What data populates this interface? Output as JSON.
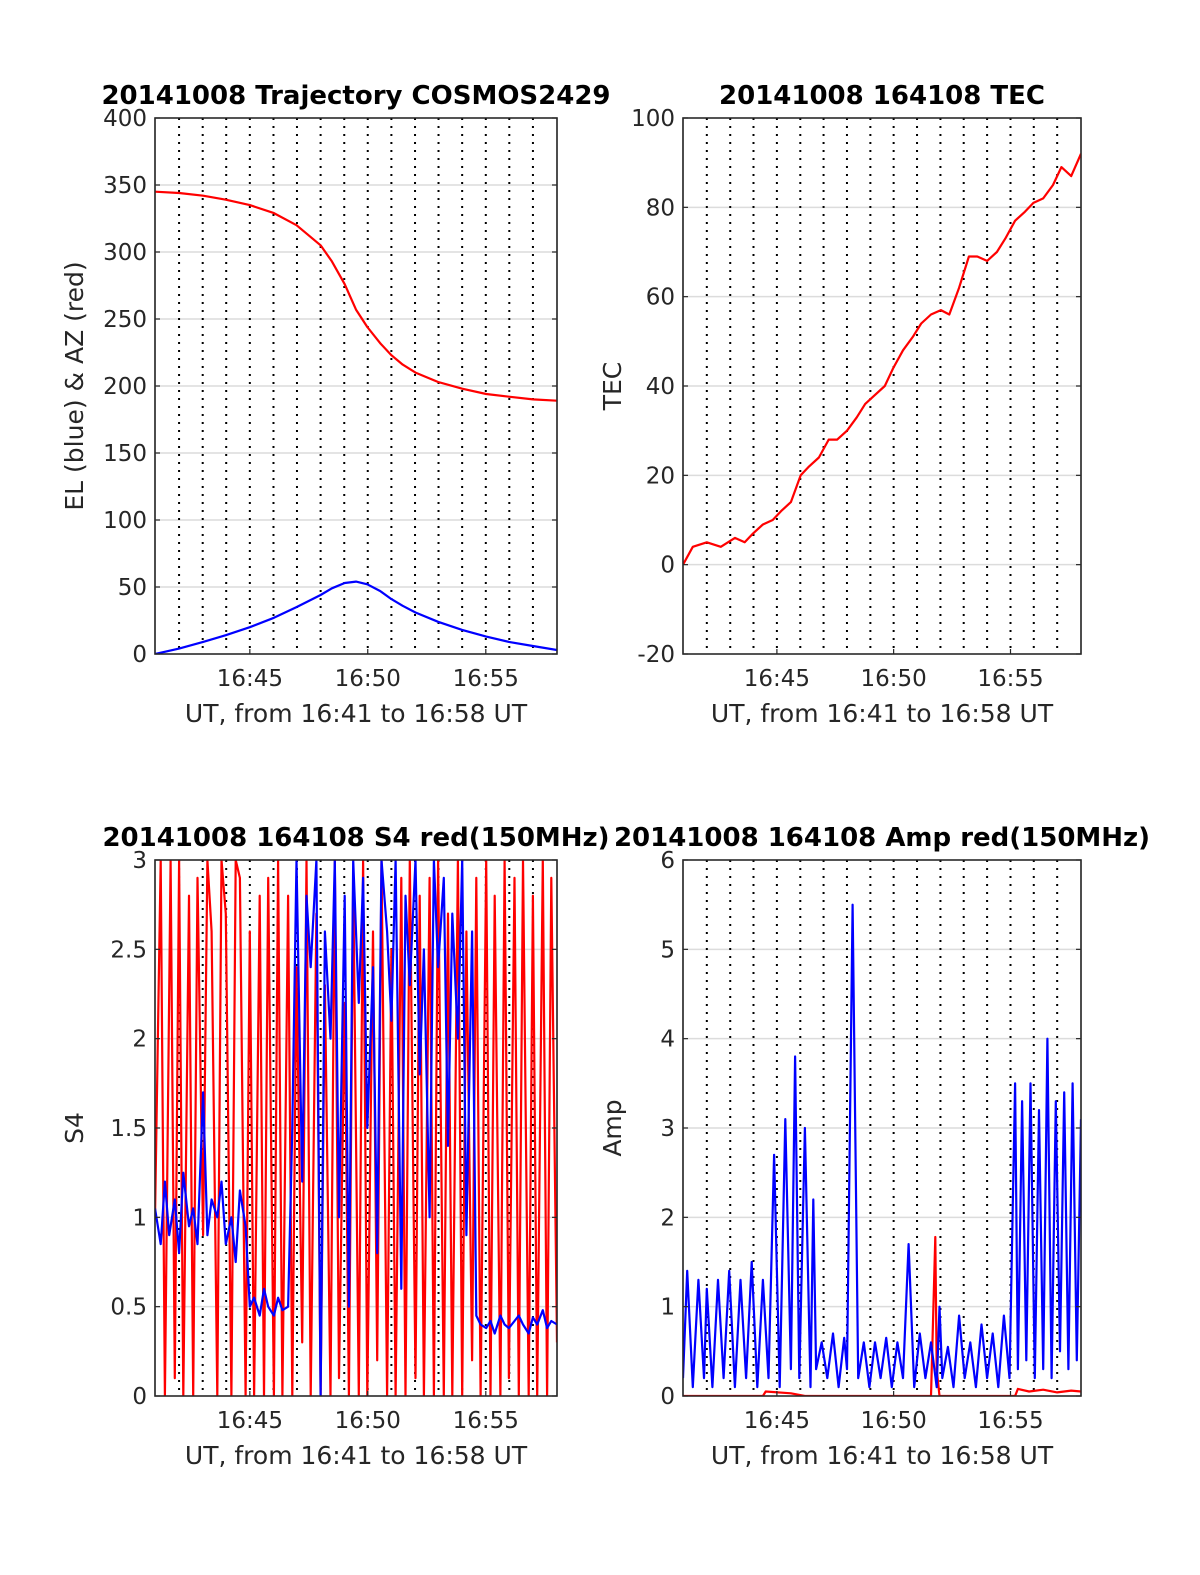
{
  "chart_data": [
    {
      "id": "trajectory",
      "type": "line",
      "title": "20141008 Trajectory COSMOS2429",
      "xlabel": "UT, from 16:41 to 16:58 UT",
      "ylabel": "EL (blue) & AZ (red)",
      "xlim": [
        16.683,
        16.967
      ],
      "ylim": [
        0,
        400
      ],
      "yticks": [
        0,
        50,
        100,
        150,
        200,
        250,
        300,
        350,
        400
      ],
      "xticks": [
        {
          "v": 16.75,
          "label": "16:45"
        },
        {
          "v": 16.8333,
          "label": "16:50"
        },
        {
          "v": 16.9167,
          "label": "16:55"
        }
      ],
      "vgrid_minutes": [
        16.7,
        16.7167,
        16.7333,
        16.75,
        16.7667,
        16.7833,
        16.8,
        16.8167,
        16.8333,
        16.85,
        16.8667,
        16.8833,
        16.9,
        16.9167,
        16.9333,
        16.95
      ],
      "series": [
        {
          "name": "AZ",
          "color": "#ff0000",
          "x": [
            16.683,
            16.7,
            16.717,
            16.733,
            16.75,
            16.767,
            16.783,
            16.8,
            16.808,
            16.817,
            16.825,
            16.833,
            16.842,
            16.85,
            16.858,
            16.867,
            16.883,
            16.9,
            16.917,
            16.933,
            16.95,
            16.967
          ],
          "y": [
            345,
            344,
            342,
            339,
            335,
            329,
            320,
            305,
            293,
            276,
            257,
            244,
            232,
            223,
            216,
            210,
            203,
            198,
            194,
            192,
            190,
            189
          ]
        },
        {
          "name": "EL",
          "color": "#0000ff",
          "x": [
            16.683,
            16.7,
            16.717,
            16.733,
            16.75,
            16.767,
            16.783,
            16.8,
            16.808,
            16.817,
            16.825,
            16.833,
            16.842,
            16.85,
            16.858,
            16.867,
            16.883,
            16.9,
            16.917,
            16.933,
            16.95,
            16.967
          ],
          "y": [
            0,
            4,
            9,
            14,
            20,
            27,
            35,
            44,
            49,
            53,
            54,
            52,
            47,
            41,
            36,
            31,
            24,
            18,
            13,
            9,
            6,
            3
          ]
        }
      ]
    },
    {
      "id": "tec",
      "type": "line",
      "title": "20141008 164108 TEC",
      "xlabel": "UT, from 16:41 to 16:58 UT",
      "ylabel": "TEC",
      "xlim": [
        16.683,
        16.967
      ],
      "ylim": [
        -20,
        100
      ],
      "yticks": [
        -20,
        0,
        20,
        40,
        60,
        80,
        100
      ],
      "xticks": [
        {
          "v": 16.75,
          "label": "16:45"
        },
        {
          "v": 16.8333,
          "label": "16:50"
        },
        {
          "v": 16.9167,
          "label": "16:55"
        }
      ],
      "vgrid_minutes": [
        16.7,
        16.7167,
        16.7333,
        16.75,
        16.7667,
        16.7833,
        16.8,
        16.8167,
        16.8333,
        16.85,
        16.8667,
        16.8833,
        16.9,
        16.9167,
        16.9333,
        16.95
      ],
      "series": [
        {
          "name": "TEC",
          "color": "#ff0000",
          "x": [
            16.683,
            16.69,
            16.7,
            16.71,
            16.72,
            16.727,
            16.733,
            16.74,
            16.747,
            16.753,
            16.76,
            16.767,
            16.773,
            16.78,
            16.787,
            16.793,
            16.8,
            16.807,
            16.813,
            16.82,
            16.827,
            16.833,
            16.84,
            16.847,
            16.853,
            16.86,
            16.867,
            16.873,
            16.88,
            16.887,
            16.893,
            16.9,
            16.907,
            16.913,
            16.92,
            16.927,
            16.933,
            16.94,
            16.947,
            16.953,
            16.96,
            16.967
          ],
          "y": [
            0,
            4,
            5,
            4,
            6,
            5,
            7,
            9,
            10,
            12,
            14,
            20,
            22,
            24,
            28,
            28,
            30,
            33,
            36,
            38,
            40,
            44,
            48,
            51,
            54,
            56,
            57,
            56,
            62,
            69,
            69,
            68,
            70,
            73,
            77,
            79,
            81,
            82,
            85,
            89,
            87,
            92
          ]
        }
      ]
    },
    {
      "id": "s4",
      "type": "line",
      "title": "20141008 164108 S4 red(150MHz)",
      "xlabel": "UT, from 16:41 to 16:58 UT",
      "ylabel": "S4",
      "xlim": [
        16.683,
        16.967
      ],
      "ylim": [
        0,
        3
      ],
      "yticks": [
        0,
        0.5,
        1,
        1.5,
        2,
        2.5,
        3
      ],
      "xticks": [
        {
          "v": 16.75,
          "label": "16:45"
        },
        {
          "v": 16.8333,
          "label": "16:50"
        },
        {
          "v": 16.9167,
          "label": "16:55"
        }
      ],
      "vgrid_minutes": [
        16.7,
        16.7167,
        16.7333,
        16.75,
        16.7667,
        16.7833,
        16.8,
        16.8167,
        16.8333,
        16.85,
        16.8667,
        16.8833,
        16.9,
        16.9167,
        16.9333,
        16.95
      ],
      "series": [
        {
          "name": "S4 red",
          "color": "#ff0000",
          "x": [
            16.683,
            16.687,
            16.69,
            16.694,
            16.697,
            16.7,
            16.703,
            16.707,
            16.71,
            16.713,
            16.717,
            16.72,
            16.723,
            16.727,
            16.73,
            16.733,
            16.737,
            16.74,
            16.743,
            16.747,
            16.75,
            16.753,
            16.757,
            16.76,
            16.763,
            16.767,
            16.77,
            16.773,
            16.777,
            16.78,
            16.783,
            16.787,
            16.79,
            16.793,
            16.797,
            16.8,
            16.803,
            16.807,
            16.81,
            16.813,
            16.817,
            16.82,
            16.823,
            16.827,
            16.83,
            16.833,
            16.837,
            16.84,
            16.843,
            16.847,
            16.85,
            16.853,
            16.857,
            16.86,
            16.863,
            16.867,
            16.87,
            16.873,
            16.877,
            16.88,
            16.883,
            16.887,
            16.89,
            16.893,
            16.897,
            16.9,
            16.903,
            16.907,
            16.91,
            16.913,
            16.917,
            16.92,
            16.923,
            16.927,
            16.93,
            16.933,
            16.937,
            16.94,
            16.943,
            16.947,
            16.95,
            16.953,
            16.957,
            16.96,
            16.963,
            16.967
          ],
          "y": [
            1.0,
            3.0,
            0.0,
            3.0,
            0.1,
            3.0,
            0.0,
            2.8,
            0.0,
            2.9,
            0.9,
            3.0,
            2.6,
            0.0,
            3.0,
            2.7,
            0.0,
            3.0,
            2.9,
            0.0,
            2.6,
            0.0,
            2.8,
            0.0,
            2.9,
            0.0,
            3.0,
            0.0,
            2.8,
            0.0,
            2.4,
            0.3,
            3.0,
            0.0,
            2.7,
            0.0,
            2.3,
            0.0,
            3.0,
            0.1,
            2.2,
            0.0,
            2.9,
            0.0,
            3.0,
            0.0,
            2.6,
            0.2,
            3.0,
            0.0,
            2.5,
            0.0,
            2.9,
            0.0,
            3.0,
            0.1,
            2.8,
            0.0,
            2.9,
            0.0,
            3.0,
            0.0,
            2.7,
            0.0,
            3.0,
            0.0,
            2.6,
            0.2,
            2.9,
            0.0,
            3.0,
            0.0,
            2.8,
            0.0,
            3.0,
            0.1,
            2.9,
            0.0,
            3.0,
            0.0,
            2.8,
            0.0,
            3.0,
            0.0,
            2.9,
            0.3
          ]
        },
        {
          "name": "S4 blue",
          "color": "#0000ff",
          "x": [
            16.683,
            16.687,
            16.69,
            16.693,
            16.697,
            16.7,
            16.703,
            16.707,
            16.71,
            16.713,
            16.717,
            16.72,
            16.723,
            16.727,
            16.73,
            16.733,
            16.737,
            16.74,
            16.743,
            16.747,
            16.75,
            16.753,
            16.757,
            16.76,
            16.763,
            16.767,
            16.77,
            16.773,
            16.777,
            16.78,
            16.783,
            16.787,
            16.79,
            16.793,
            16.797,
            16.8,
            16.803,
            16.807,
            16.81,
            16.813,
            16.817,
            16.82,
            16.823,
            16.827,
            16.83,
            16.833,
            16.837,
            16.84,
            16.843,
            16.847,
            16.85,
            16.853,
            16.857,
            16.86,
            16.863,
            16.867,
            16.87,
            16.873,
            16.877,
            16.88,
            16.883,
            16.887,
            16.89,
            16.893,
            16.897,
            16.9,
            16.903,
            16.907,
            16.91,
            16.913,
            16.917,
            16.92,
            16.923,
            16.927,
            16.93,
            16.933,
            16.937,
            16.94,
            16.943,
            16.947,
            16.95,
            16.953,
            16.957,
            16.96,
            16.963,
            16.967
          ],
          "y": [
            1.05,
            0.85,
            1.2,
            0.9,
            1.1,
            0.8,
            1.25,
            0.95,
            1.05,
            0.85,
            1.7,
            0.9,
            1.1,
            1.0,
            1.2,
            0.85,
            1.0,
            0.75,
            1.15,
            0.95,
            0.5,
            0.55,
            0.45,
            0.6,
            0.5,
            0.45,
            0.55,
            0.48,
            0.5,
            1.5,
            3.0,
            1.2,
            2.8,
            2.4,
            3.0,
            0.0,
            2.6,
            2.0,
            3.0,
            1.0,
            2.8,
            0.5,
            3.0,
            2.2,
            2.9,
            1.5,
            2.4,
            0.8,
            3.0,
            2.6,
            2.1,
            3.0,
            0.6,
            2.8,
            2.3,
            3.0,
            1.8,
            2.5,
            1.0,
            3.0,
            2.4,
            2.9,
            1.4,
            2.7,
            2.0,
            3.0,
            0.9,
            2.6,
            0.45,
            0.4,
            0.38,
            0.42,
            0.35,
            0.45,
            0.4,
            0.38,
            0.42,
            0.45,
            0.4,
            0.35,
            0.44,
            0.4,
            0.48,
            0.38,
            0.42,
            0.4
          ]
        }
      ]
    },
    {
      "id": "amp",
      "type": "line",
      "title": "20141008 164108 Amp red(150MHz)",
      "xlabel": "UT, from 16:41 to 16:58 UT",
      "ylabel": "Amp",
      "xlim": [
        16.683,
        16.967
      ],
      "ylim": [
        0,
        6
      ],
      "yticks": [
        0,
        1,
        2,
        3,
        4,
        5,
        6
      ],
      "xticks": [
        {
          "v": 16.75,
          "label": "16:45"
        },
        {
          "v": 16.8333,
          "label": "16:50"
        },
        {
          "v": 16.9167,
          "label": "16:55"
        }
      ],
      "vgrid_minutes": [
        16.7,
        16.7167,
        16.7333,
        16.75,
        16.7667,
        16.7833,
        16.8,
        16.8167,
        16.8333,
        16.85,
        16.8667,
        16.8833,
        16.9,
        16.9167,
        16.9333,
        16.95
      ],
      "series": [
        {
          "name": "Amp red",
          "color": "#ff0000",
          "x": [
            16.683,
            16.74,
            16.742,
            16.76,
            16.77,
            16.8,
            16.86,
            16.863,
            16.864,
            16.866,
            16.87,
            16.92,
            16.922,
            16.93,
            16.94,
            16.95,
            16.96,
            16.967
          ],
          "y": [
            0.0,
            0.0,
            0.05,
            0.03,
            0.0,
            0.0,
            0.0,
            1.78,
            0.3,
            0.0,
            0.0,
            0.0,
            0.08,
            0.05,
            0.07,
            0.04,
            0.06,
            0.05
          ]
        },
        {
          "name": "Amp blue",
          "color": "#0000ff",
          "x": [
            16.683,
            16.686,
            16.69,
            16.694,
            16.698,
            16.7,
            16.704,
            16.708,
            16.712,
            16.716,
            16.72,
            16.724,
            16.728,
            16.732,
            16.736,
            16.74,
            16.744,
            16.748,
            16.752,
            16.756,
            16.76,
            16.763,
            16.766,
            16.77,
            16.774,
            16.776,
            16.778,
            16.782,
            16.786,
            16.79,
            16.794,
            16.798,
            16.8,
            16.804,
            16.808,
            16.812,
            16.816,
            16.82,
            16.824,
            16.828,
            16.832,
            16.836,
            16.84,
            16.844,
            16.848,
            16.852,
            16.856,
            16.86,
            16.864,
            16.866,
            16.868,
            16.872,
            16.876,
            16.88,
            16.884,
            16.888,
            16.892,
            16.896,
            16.9,
            16.904,
            16.908,
            16.912,
            16.916,
            16.92,
            16.922,
            16.925,
            16.928,
            16.931,
            16.934,
            16.937,
            16.94,
            16.943,
            16.946,
            16.949,
            16.952,
            16.955,
            16.958,
            16.961,
            16.964,
            16.967
          ],
          "y": [
            0.2,
            1.4,
            0.1,
            1.3,
            0.2,
            1.2,
            0.1,
            1.3,
            0.2,
            1.4,
            0.1,
            1.3,
            0.2,
            1.5,
            0.1,
            1.3,
            0.2,
            2.7,
            0.1,
            3.1,
            0.3,
            3.8,
            0.2,
            3.0,
            0.1,
            2.2,
            0.3,
            0.6,
            0.2,
            0.7,
            0.1,
            0.65,
            0.3,
            5.5,
            0.2,
            0.6,
            0.1,
            0.6,
            0.2,
            0.65,
            0.1,
            0.6,
            0.2,
            1.7,
            0.1,
            0.7,
            0.2,
            0.6,
            0.1,
            1.0,
            0.2,
            0.55,
            0.1,
            0.9,
            0.2,
            0.6,
            0.1,
            0.8,
            0.2,
            0.7,
            0.1,
            0.9,
            0.2,
            3.5,
            0.3,
            3.3,
            0.4,
            3.5,
            0.2,
            3.2,
            0.3,
            4.0,
            0.2,
            3.3,
            0.5,
            3.4,
            0.3,
            3.5,
            0.4,
            3.1
          ]
        }
      ]
    }
  ]
}
